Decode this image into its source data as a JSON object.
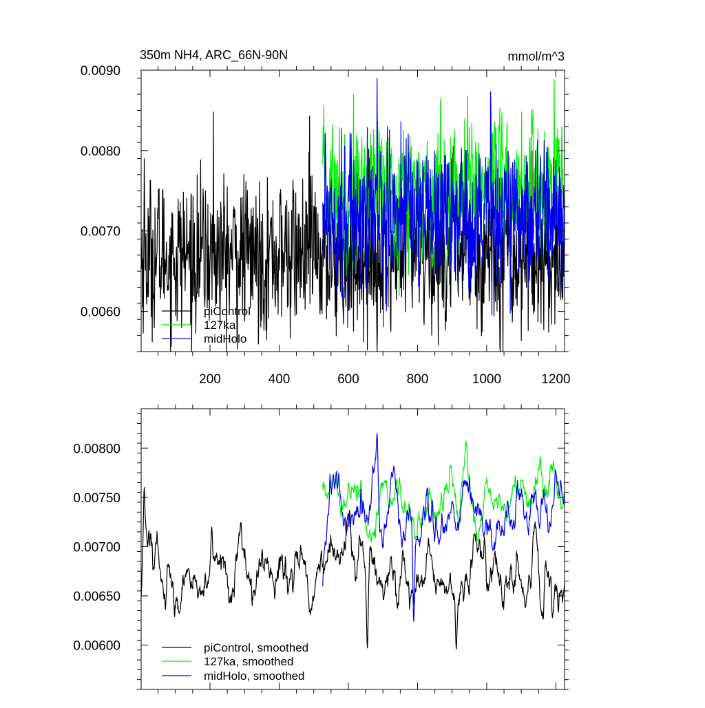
{
  "chart_data": [
    {
      "type": "line",
      "title": "350m NH4, ARC_66N-90N",
      "units": "mmol/m^3",
      "xlim": [
        1,
        1225
      ],
      "ylim": [
        0.0055,
        0.009
      ],
      "x_ticks": [
        200,
        400,
        600,
        800,
        1000,
        1200
      ],
      "y_ticks": [
        0.006,
        0.007,
        0.008,
        0.009
      ],
      "y_tick_labels": [
        "0.0060",
        "0.0070",
        "0.0080",
        "0.0090"
      ],
      "legend_position": "bottom-left",
      "series": [
        {
          "name": "piControl",
          "color": "#000000",
          "x_range": [
            1,
            1225
          ],
          "mean": 0.0067,
          "spread": 0.00045,
          "peaks": [
            [
              10,
              0.0079
            ],
            [
              210,
              0.00848
            ],
            [
              488,
              0.00843
            ],
            [
              655,
              0.00552
            ]
          ]
        },
        {
          "name": "127ka",
          "color": "#00ee00",
          "x_range": [
            526,
            1225
          ],
          "mean": 0.00752,
          "spread": 0.0004,
          "peaks": [
            [
              615,
              0.0087
            ],
            [
              945,
              0.00868
            ]
          ]
        },
        {
          "name": "midHolo",
          "color": "#0000ee",
          "x_range": [
            526,
            1225
          ],
          "mean": 0.00725,
          "spread": 0.00045,
          "peaks": [
            [
              683,
              0.0089
            ],
            [
              598,
              0.0058
            ]
          ]
        }
      ]
    },
    {
      "type": "line",
      "title": "",
      "xlim": [
        1,
        1225
      ],
      "ylim": [
        0.00555,
        0.0084
      ],
      "x_ticks": [
        200,
        400,
        600,
        800,
        1000,
        1200
      ],
      "y_ticks": [
        0.006,
        0.0065,
        0.007,
        0.0075,
        0.008
      ],
      "y_tick_labels": [
        "0.00600",
        "0.00650",
        "0.00700",
        "0.00750",
        "0.00800"
      ],
      "legend_position": "bottom-left",
      "series": [
        {
          "name": "piControl, smoothed",
          "color": "#000000",
          "x_range": [
            1,
            1225
          ],
          "mean": 0.00672,
          "spread": 0.0002,
          "peaks": [
            [
              10,
              0.0076
            ],
            [
              205,
              0.0072
            ],
            [
              655,
              0.00597
            ],
            [
              912,
              0.00596
            ]
          ]
        },
        {
          "name": "127ka, smoothed",
          "color": "#00ee00",
          "x_range": [
            526,
            1225
          ],
          "mean": 0.00745,
          "spread": 0.00018,
          "peaks": [
            [
              940,
              0.00807
            ]
          ]
        },
        {
          "name": "midHolo, smoothed",
          "color": "#0000ee",
          "x_range": [
            526,
            1225
          ],
          "mean": 0.00735,
          "spread": 0.0002,
          "peaks": [
            [
              683,
              0.00815
            ],
            [
              789,
              0.00624
            ]
          ]
        }
      ]
    }
  ]
}
